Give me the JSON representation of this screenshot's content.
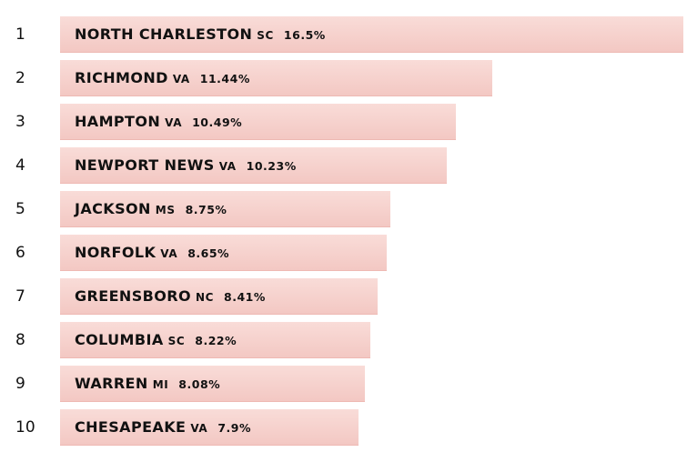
{
  "chart_data": {
    "type": "bar",
    "orientation": "horizontal",
    "xlim": [
      0,
      16.5
    ],
    "categories": [
      "1",
      "2",
      "3",
      "4",
      "5",
      "6",
      "7",
      "8",
      "9",
      "10"
    ],
    "rows": [
      {
        "rank": "1",
        "city": "NORTH CHARLESTON",
        "state": "SC",
        "value_label": "16.5%",
        "value": 16.5
      },
      {
        "rank": "2",
        "city": "RICHMOND",
        "state": "VA",
        "value_label": "11.44%",
        "value": 11.44
      },
      {
        "rank": "3",
        "city": "HAMPTON",
        "state": "VA",
        "value_label": "10.49%",
        "value": 10.49
      },
      {
        "rank": "4",
        "city": "NEWPORT NEWS",
        "state": "VA",
        "value_label": "10.23%",
        "value": 10.23
      },
      {
        "rank": "5",
        "city": "JACKSON",
        "state": "MS",
        "value_label": "8.75%",
        "value": 8.75
      },
      {
        "rank": "6",
        "city": "NORFOLK",
        "state": "VA",
        "value_label": "8.65%",
        "value": 8.65
      },
      {
        "rank": "7",
        "city": "GREENSBORO",
        "state": "NC",
        "value_label": "8.41%",
        "value": 8.41
      },
      {
        "rank": "8",
        "city": "COLUMBIA",
        "state": "SC",
        "value_label": "8.22%",
        "value": 8.22
      },
      {
        "rank": "9",
        "city": "WARREN",
        "state": "MI",
        "value_label": "8.08%",
        "value": 8.08
      },
      {
        "rank": "10",
        "city": "CHESAPEAKE",
        "state": "VA",
        "value_label": "7.9%",
        "value": 7.9
      }
    ],
    "colors": {
      "bar": "#f6d2cd",
      "bar_edge": "#eeb9b3",
      "text": "#111111"
    }
  }
}
